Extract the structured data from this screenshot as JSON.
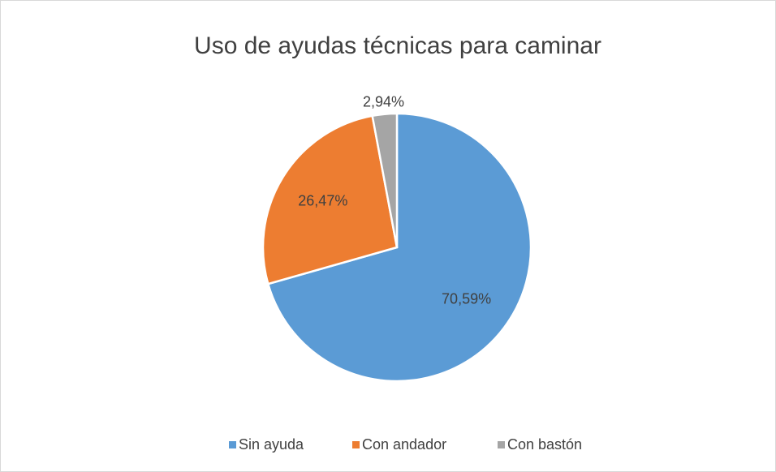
{
  "chart_data": {
    "type": "pie",
    "title": "Uso de ayudas técnicas para caminar",
    "categories": [
      "Sin ayuda",
      "Con andador",
      "Con bastón"
    ],
    "values": [
      70.59,
      26.47,
      2.94
    ],
    "value_labels": [
      "70,59%",
      "26,47%",
      "2,94%"
    ],
    "colors": [
      "#5b9bd5",
      "#ed7d31",
      "#a5a5a5"
    ],
    "legend": "bottom"
  }
}
